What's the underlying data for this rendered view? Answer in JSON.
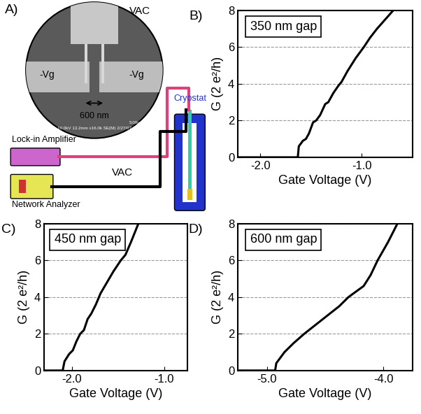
{
  "diagram": {
    "label": "A)",
    "source_label": "VAC",
    "gate_labels": [
      "-Vg",
      "-Vg"
    ],
    "gap_label": "600 nm",
    "sem_caption": "10.0kV 13.2mm x16.0k SE(M) 2/27/07",
    "scale_label": "5.00um",
    "instruments": [
      "Lock-in Amplifier",
      "Network Analyzer"
    ],
    "cryostat": "Cryostat",
    "line_label": "VAC"
  },
  "chart_data": [
    {
      "type": "line",
      "label": "B)",
      "annotation": "350 nm gap",
      "x_label": "Gate Voltage (V)",
      "y_label": "G (2 e²/h)",
      "x": [
        -2.22,
        -1.63,
        -1.62,
        -1.58,
        -1.55,
        -1.52,
        -1.48,
        -1.45,
        -1.41,
        -1.36,
        -1.33,
        -1.28,
        -1.23,
        -1.2,
        -1.14,
        -1.06,
        -0.98,
        -0.92,
        -0.85,
        -0.77,
        -0.69
      ],
      "values": [
        0,
        0,
        0.6,
        0.9,
        1.0,
        1.3,
        1.9,
        2.0,
        2.3,
        2.9,
        3.0,
        3.5,
        3.9,
        4.1,
        4.7,
        5.4,
        6.0,
        6.5,
        7.0,
        7.5,
        8.0
      ],
      "color": "#000000",
      "line_style": "solid",
      "xlim": [
        -2.22,
        -0.5
      ],
      "xticks": [
        -2.0,
        -1.0
      ],
      "ylim": [
        0,
        8
      ],
      "yticks": [
        0,
        2,
        4,
        6,
        8
      ],
      "grid": true
    },
    {
      "type": "line",
      "label": "C)",
      "annotation": "450 nm gap",
      "x_label": "Gate Voltage (V)",
      "y_label": "G (2 e²/h)",
      "x": [
        -2.3,
        -2.1,
        -2.08,
        -2.03,
        -1.99,
        -1.95,
        -1.91,
        -1.87,
        -1.83,
        -1.79,
        -1.74,
        -1.69,
        -1.62,
        -1.55,
        -1.47,
        -1.42,
        -1.36,
        -1.28
      ],
      "values": [
        0,
        0,
        0.5,
        0.9,
        1.1,
        1.6,
        2.0,
        2.2,
        2.8,
        3.1,
        3.6,
        4.2,
        4.8,
        5.4,
        6.0,
        6.3,
        7.0,
        8.0
      ],
      "color": "#000000",
      "line_style": "solid",
      "xlim": [
        -2.3,
        -0.75
      ],
      "xticks": [
        -2.0,
        -1.0
      ],
      "ylim": [
        0,
        8
      ],
      "yticks": [
        0,
        2,
        4,
        6,
        8
      ],
      "grid": true
    },
    {
      "type": "line",
      "label": "D)",
      "annotation": "600 nm gap",
      "x_label": "Gate Voltage (V)",
      "y_label": "G (2 e²/h)",
      "x": [
        -5.25,
        -4.93,
        -4.92,
        -4.85,
        -4.77,
        -4.68,
        -4.58,
        -4.48,
        -4.38,
        -4.3,
        -4.17,
        -4.11,
        -4.05,
        -3.96,
        -3.88
      ],
      "values": [
        0,
        0,
        0.4,
        1.0,
        1.5,
        2.0,
        2.5,
        3.0,
        3.5,
        4.0,
        4.6,
        5.2,
        6.0,
        7.0,
        8.0
      ],
      "color": "#000000",
      "line_style": "solid",
      "xlim": [
        -5.25,
        -3.75
      ],
      "xticks": [
        -5.0,
        -4.0
      ],
      "ylim": [
        0,
        8
      ],
      "yticks": [
        0,
        2,
        4,
        6,
        8
      ],
      "grid": true
    }
  ]
}
